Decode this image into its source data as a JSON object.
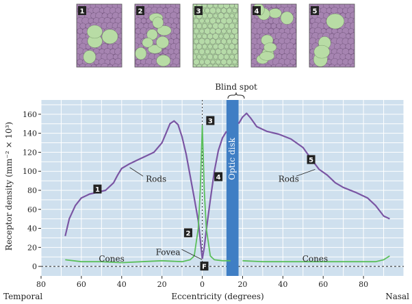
{
  "thumbnails": [
    {
      "label": "1",
      "pattern": "rods-dominant",
      "bg": "#9b72a6",
      "spot": "#b8dca5",
      "cell": "#a684b1"
    },
    {
      "label": "2",
      "pattern": "mixed",
      "bg": "#9b72a6",
      "spot": "#b8dca5",
      "cell": "#a684b1"
    },
    {
      "label": "3",
      "pattern": "cones-only",
      "bg": "#a8d09a",
      "spot": "#cde7c3",
      "cell": "#b6dba8"
    },
    {
      "label": "4",
      "pattern": "mixed",
      "bg": "#9b72a6",
      "spot": "#b8dca5",
      "cell": "#a684b1"
    },
    {
      "label": "5",
      "pattern": "rods-dominant",
      "bg": "#9b72a6",
      "spot": "#b8dca5",
      "cell": "#a684b1"
    }
  ],
  "chart_data": {
    "type": "line",
    "xlabel": "Eccentricity (degrees)",
    "ylabel": "Receptor density (mm⁻² × 10³)",
    "xlim": [
      -80,
      100
    ],
    "ylim": [
      -10,
      175
    ],
    "x_tick_values": [
      -80,
      -60,
      -40,
      -20,
      0,
      20,
      40,
      60,
      80
    ],
    "x_tick_labels": [
      "80",
      "60",
      "40",
      "20",
      "0",
      "20",
      "40",
      "60",
      "80"
    ],
    "y_ticks": [
      0,
      20,
      40,
      60,
      80,
      100,
      120,
      140,
      160
    ],
    "x_end_labels": {
      "left": "Temporal",
      "right": "Nasal"
    },
    "grid": true,
    "colors": {
      "plot_bg": "#cfe0ee",
      "grid": "#ffffff",
      "rods": "#7a55a3",
      "cones": "#5bbf5b",
      "optic_disk": "#3f7ec4",
      "badge": "#222222"
    },
    "series": [
      {
        "name": "Rods",
        "segments": [
          [
            [
              -68,
              32
            ],
            [
              -66,
              50
            ],
            [
              -63,
              64
            ],
            [
              -60,
              72
            ],
            [
              -56,
              76
            ],
            [
              -52,
              78
            ],
            [
              -48,
              80
            ],
            [
              -44,
              88
            ],
            [
              -42,
              96
            ],
            [
              -40,
              103
            ],
            [
              -36,
              108
            ],
            [
              -32,
              112
            ],
            [
              -28,
              116
            ],
            [
              -24,
              120
            ],
            [
              -20,
              130
            ],
            [
              -18,
              140
            ],
            [
              -16,
              150
            ],
            [
              -14,
              153
            ],
            [
              -12,
              149
            ],
            [
              -10,
              136
            ],
            [
              -8,
              118
            ],
            [
              -6,
              95
            ],
            [
              -4,
              72
            ],
            [
              -2,
              48
            ],
            [
              -1,
              28
            ],
            [
              0,
              8
            ]
          ],
          [
            [
              0,
              8
            ],
            [
              1,
              20
            ],
            [
              2,
              38
            ],
            [
              4,
              70
            ],
            [
              6,
              100
            ],
            [
              8,
              122
            ],
            [
              10,
              135
            ],
            [
              12,
              142
            ]
          ],
          [
            [
              18,
              150
            ],
            [
              20,
              157
            ],
            [
              22,
              161
            ],
            [
              24,
              156
            ],
            [
              27,
              147
            ],
            [
              32,
              142
            ],
            [
              38,
              139
            ],
            [
              44,
              134
            ],
            [
              50,
              125
            ],
            [
              54,
              113
            ],
            [
              58,
              102
            ],
            [
              62,
              96
            ],
            [
              66,
              88
            ],
            [
              70,
              83
            ],
            [
              76,
              78
            ],
            [
              82,
              72
            ],
            [
              86,
              64
            ],
            [
              90,
              53
            ],
            [
              93,
              50
            ]
          ]
        ]
      },
      {
        "name": "Cones",
        "segments": [
          [
            [
              -68,
              7
            ],
            [
              -60,
              5
            ],
            [
              -50,
              5
            ],
            [
              -40,
              4
            ],
            [
              -30,
              5
            ],
            [
              -20,
              6
            ],
            [
              -10,
              5
            ],
            [
              -6,
              7
            ],
            [
              -4,
              11
            ],
            [
              -2,
              40
            ],
            [
              -1,
              80
            ],
            [
              0,
              148
            ],
            [
              1,
              80
            ],
            [
              2,
              40
            ],
            [
              4,
              11
            ],
            [
              6,
              7
            ],
            [
              10,
              6
            ],
            [
              14,
              6
            ]
          ],
          [
            [
              20,
              6
            ],
            [
              30,
              5
            ],
            [
              40,
              5
            ],
            [
              50,
              5
            ],
            [
              60,
              5
            ],
            [
              70,
              5
            ],
            [
              80,
              5
            ],
            [
              86,
              5
            ],
            [
              90,
              7
            ],
            [
              93,
              11
            ]
          ]
        ]
      }
    ],
    "optic_disk": {
      "x_range": [
        12,
        18
      ],
      "label": "Optic disk",
      "annotation": "Blind spot"
    },
    "annotations": [
      {
        "text": "Rods",
        "at": [
          -36,
          104
        ],
        "label_pos": [
          -28,
          92
        ]
      },
      {
        "text": "Rods",
        "at": [
          56,
          102
        ],
        "label_pos": [
          48,
          92
        ]
      },
      {
        "text": "Cones",
        "at": [
          -45,
          8
        ],
        "label_pos": [
          -45,
          8
        ]
      },
      {
        "text": "Cones",
        "at": [
          56,
          8
        ],
        "label_pos": [
          56,
          8
        ]
      },
      {
        "text": "Fovea",
        "at": [
          0,
          7
        ],
        "label_pos": [
          -17,
          15
        ]
      }
    ],
    "badges": [
      {
        "text": "1",
        "x": -52,
        "y": 81
      },
      {
        "text": "2",
        "x": -7,
        "y": 35
      },
      {
        "text": "3",
        "x": 4,
        "y": 153
      },
      {
        "text": "4",
        "x": 8,
        "y": 94
      },
      {
        "text": "5",
        "x": 54,
        "y": 112
      },
      {
        "text": "F",
        "x": 1,
        "y": 0
      }
    ],
    "reference_lines": [
      {
        "orientation": "horizontal",
        "value": 0,
        "style": "dashed"
      },
      {
        "orientation": "vertical",
        "value": 0,
        "style": "dashed"
      }
    ]
  }
}
